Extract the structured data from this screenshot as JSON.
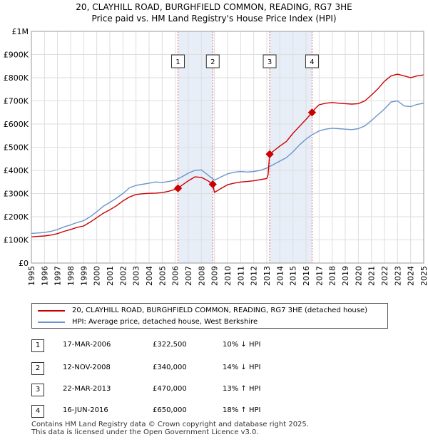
{
  "chart_data": {
    "type": "line",
    "title": "20, CLAYHILL ROAD, BURGHFIELD COMMON, READING, RG7 3HE",
    "subtitle": "Price paid vs. HM Land Registry's House Price Index (HPI)",
    "xlim": [
      1995,
      2025
    ],
    "ylim": [
      0,
      1000000
    ],
    "y_ticks": [
      {
        "value": 0,
        "label": "£0"
      },
      {
        "value": 100000,
        "label": "£100K"
      },
      {
        "value": 200000,
        "label": "£200K"
      },
      {
        "value": 300000,
        "label": "£300K"
      },
      {
        "value": 400000,
        "label": "£400K"
      },
      {
        "value": 500000,
        "label": "£500K"
      },
      {
        "value": 600000,
        "label": "£600K"
      },
      {
        "value": 700000,
        "label": "£700K"
      },
      {
        "value": 800000,
        "label": "£800K"
      },
      {
        "value": 900000,
        "label": "£900K"
      },
      {
        "value": 1000000,
        "label": "£1M"
      }
    ],
    "x_ticks": [
      "1995",
      "1996",
      "1997",
      "1998",
      "1999",
      "2000",
      "2001",
      "2002",
      "2003",
      "2004",
      "2005",
      "2006",
      "2007",
      "2008",
      "2009",
      "2010",
      "2011",
      "2012",
      "2013",
      "2014",
      "2015",
      "2016",
      "2017",
      "2018",
      "2019",
      "2020",
      "2021",
      "2022",
      "2023",
      "2024",
      "2025"
    ],
    "grid": true,
    "series": [
      {
        "name": "20, CLAYHILL ROAD, BURGHFIELD COMMON, READING, RG7 3HE (detached house)",
        "color": "#cc0000",
        "x": [
          1995.0,
          1995.5,
          1996.0,
          1996.5,
          1997.0,
          1997.5,
          1998.0,
          1998.5,
          1999.0,
          1999.5,
          2000.0,
          2000.5,
          2001.0,
          2001.5,
          2002.0,
          2002.5,
          2003.0,
          2003.5,
          2004.0,
          2004.5,
          2005.0,
          2005.5,
          2006.0,
          2006.21,
          2006.5,
          2007.0,
          2007.5,
          2008.0,
          2008.5,
          2008.87,
          2009.0,
          2009.5,
          2010.0,
          2010.5,
          2011.0,
          2011.5,
          2012.0,
          2012.5,
          2013.0,
          2013.1,
          2013.22,
          2013.5,
          2014.0,
          2014.5,
          2015.0,
          2015.5,
          2016.0,
          2016.46,
          2016.7,
          2017.0,
          2017.5,
          2018.0,
          2018.5,
          2019.0,
          2019.5,
          2020.0,
          2020.5,
          2021.0,
          2021.5,
          2022.0,
          2022.5,
          2023.0,
          2023.5,
          2024.0,
          2024.5,
          2025.0
        ],
        "values": [
          113000,
          115000,
          117000,
          121000,
          127000,
          137000,
          145000,
          154000,
          160000,
          177000,
          196000,
          215000,
          230000,
          247000,
          268000,
          285000,
          296000,
          299000,
          301000,
          302000,
          304000,
          310000,
          318000,
          322500,
          335000,
          355000,
          372000,
          370000,
          355000,
          340000,
          305000,
          322000,
          338000,
          345000,
          350000,
          352000,
          355000,
          360000,
          365000,
          380000,
          470000,
          483000,
          505000,
          525000,
          560000,
          590000,
          620000,
          650000,
          667000,
          683000,
          690000,
          693000,
          690000,
          688000,
          686000,
          688000,
          700000,
          725000,
          752000,
          785000,
          808000,
          815000,
          808000,
          800000,
          808000,
          812000
        ]
      },
      {
        "name": "HPI: Average price, detached house, West Berkshire",
        "color": "#6a95cc",
        "x": [
          1995.0,
          1995.5,
          1996.0,
          1996.5,
          1997.0,
          1997.5,
          1998.0,
          1998.5,
          1999.0,
          1999.5,
          2000.0,
          2000.5,
          2001.0,
          2001.5,
          2002.0,
          2002.5,
          2003.0,
          2003.5,
          2004.0,
          2004.5,
          2005.0,
          2005.5,
          2006.0,
          2006.5,
          2007.0,
          2007.5,
          2008.0,
          2008.5,
          2009.0,
          2009.5,
          2010.0,
          2010.5,
          2011.0,
          2011.5,
          2012.0,
          2012.5,
          2013.0,
          2013.5,
          2014.0,
          2014.5,
          2015.0,
          2015.5,
          2016.0,
          2016.5,
          2017.0,
          2017.5,
          2018.0,
          2018.5,
          2019.0,
          2019.5,
          2020.0,
          2020.5,
          2021.0,
          2021.5,
          2022.0,
          2022.5,
          2023.0,
          2023.5,
          2024.0,
          2024.5,
          2025.0
        ],
        "values": [
          128000,
          130000,
          132000,
          137000,
          145000,
          156000,
          165000,
          175000,
          183000,
          200000,
          222000,
          245000,
          262000,
          280000,
          300000,
          325000,
          335000,
          340000,
          345000,
          350000,
          348000,
          352000,
          358000,
          372000,
          388000,
          400000,
          402000,
          380000,
          358000,
          372000,
          385000,
          392000,
          395000,
          393000,
          395000,
          400000,
          410000,
          425000,
          440000,
          455000,
          480000,
          510000,
          535000,
          555000,
          570000,
          578000,
          582000,
          580000,
          578000,
          576000,
          580000,
          592000,
          615000,
          640000,
          665000,
          695000,
          700000,
          678000,
          675000,
          685000,
          690000
        ]
      }
    ],
    "sales": [
      {
        "n": "1",
        "x": 2006.21,
        "value": 322500
      },
      {
        "n": "2",
        "x": 2008.87,
        "value": 340000
      },
      {
        "n": "3",
        "x": 2013.22,
        "value": 470000
      },
      {
        "n": "4",
        "x": 2016.46,
        "value": 650000
      }
    ],
    "shaded_ranges": [
      [
        2006.21,
        2008.87
      ],
      [
        2013.22,
        2016.46
      ]
    ]
  },
  "legend": {
    "property_label": "20, CLAYHILL ROAD, BURGHFIELD COMMON, READING, RG7 3HE (detached house)",
    "hpi_label": "HPI: Average price, detached house, West Berkshire"
  },
  "transactions": [
    {
      "n": "1",
      "date": "17-MAR-2006",
      "price": "£322,500",
      "hpi": "10% ↓ HPI"
    },
    {
      "n": "2",
      "date": "12-NOV-2008",
      "price": "£340,000",
      "hpi": "14% ↓ HPI"
    },
    {
      "n": "3",
      "date": "22-MAR-2013",
      "price": "£470,000",
      "hpi": "13% ↑ HPI"
    },
    {
      "n": "4",
      "date": "16-JUN-2016",
      "price": "£650,000",
      "hpi": "18% ↑ HPI"
    }
  ],
  "footer": {
    "line1": "Contains HM Land Registry data © Crown copyright and database right 2025.",
    "line2": "This data is licensed under the Open Government Licence v3.0."
  },
  "colors": {
    "property": "#cc0000",
    "hpi": "#6a95cc",
    "shade": "#e8eef8",
    "vline": "#e06666"
  }
}
